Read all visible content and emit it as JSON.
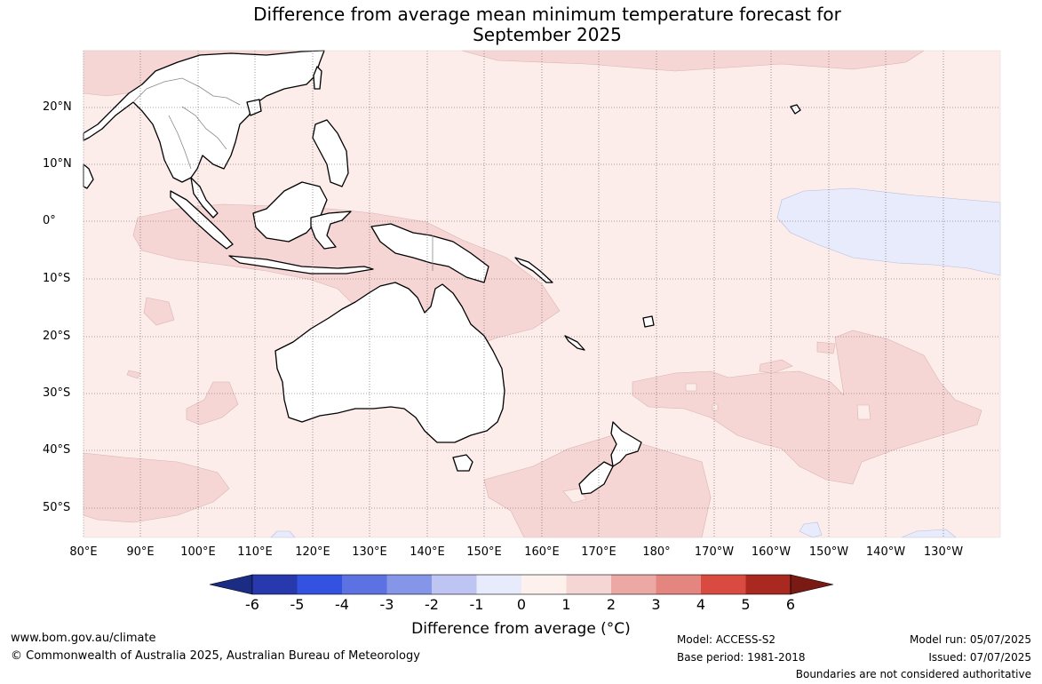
{
  "title": {
    "line1": "Difference from average mean minimum temperature forecast for",
    "line2": "September 2025"
  },
  "map": {
    "lat_labels": [
      "20°N",
      "10°N",
      "0°",
      "10°S",
      "20°S",
      "30°S",
      "40°S",
      "50°S"
    ],
    "lon_labels": [
      "80°E",
      "90°E",
      "100°E",
      "110°E",
      "120°E",
      "130°E",
      "140°E",
      "150°E",
      "160°E",
      "170°E",
      "180°",
      "170°W",
      "160°W",
      "150°W",
      "140°W",
      "130°W"
    ],
    "colors": {
      "ocean_0_1": "#fcecea",
      "anom_1_2": "#f6d6d5",
      "anom_neg": "#e8ebfb",
      "land": "#ffffff",
      "coast": "#000000",
      "border": "#888888",
      "grid": "#555555"
    }
  },
  "colorbar": {
    "ticks": [
      "-6",
      "-5",
      "-4",
      "-3",
      "-2",
      "-1",
      "0",
      "1",
      "2",
      "3",
      "4",
      "5",
      "6"
    ],
    "colors": [
      "#1b2c84",
      "#2839ad",
      "#3352df",
      "#5d72e2",
      "#8595e8",
      "#bec5f3",
      "#e8ebfb",
      "#fdf1ee",
      "#f6d6d5",
      "#eba8a4",
      "#e48580",
      "#d94a40",
      "#a9281f",
      "#7a1a14"
    ],
    "label": "Difference from average (°C)"
  },
  "footer": {
    "url": "www.bom.gov.au/climate",
    "copyright": "© Commonwealth of Australia 2025, Australian Bureau of Meteorology",
    "model": "Model: ACCESS-S2",
    "base_period": "Base period: 1981-2018",
    "model_run": "Model run: 05/07/2025",
    "issued": "Issued: 07/07/2025",
    "disclaimer": "Boundaries are not considered authoritative"
  }
}
